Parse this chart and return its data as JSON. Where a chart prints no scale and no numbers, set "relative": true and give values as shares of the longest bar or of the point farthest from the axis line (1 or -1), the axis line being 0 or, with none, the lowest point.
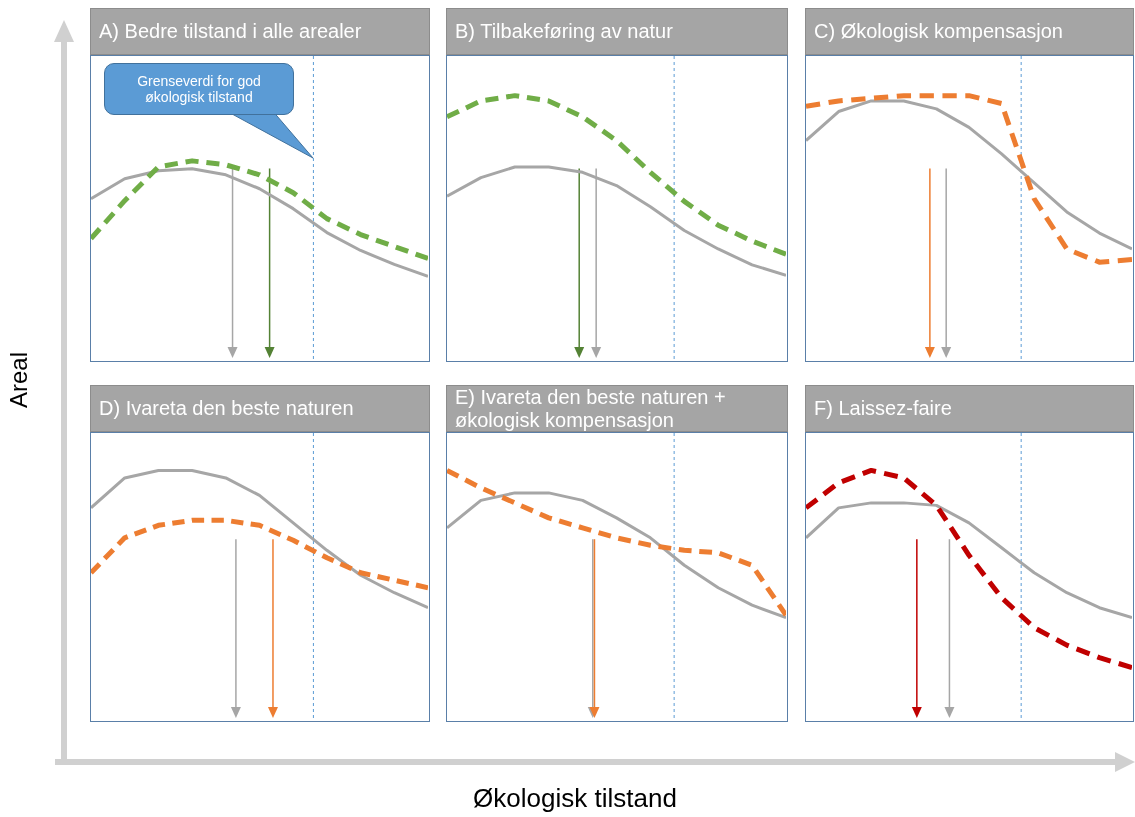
{
  "chart_data": [
    {
      "type": "line",
      "title": "A) Bedre tilstand i alle arealer",
      "ylabel": "Areal",
      "relative": true,
      "tick_labels": false,
      "categories": [
        null,
        null,
        null,
        null,
        null,
        null,
        null,
        null,
        null,
        null,
        null
      ],
      "annotations": [
        "Grenseverdi for god økologisk tilstand"
      ],
      "series": [
        {
          "color": "#a6a6a6",
          "line_style": "solid",
          "values": [
            0.81,
            0.91,
            0.95,
            0.96,
            0.93,
            0.86,
            0.76,
            0.64,
            0.55,
            0.48,
            0.42
          ]
        },
        {
          "color": "#70ad47",
          "line_style": "dashed",
          "values": [
            0.61,
            0.8,
            0.97,
            1,
            0.98,
            0.93,
            0.84,
            0.71,
            0.63,
            0.57,
            0.51
          ]
        }
      ]
    },
    {
      "type": "line",
      "title": "B) Tilbakeføring av natur",
      "relative": true,
      "tick_labels": false,
      "categories": [
        null,
        null,
        null,
        null,
        null,
        null,
        null,
        null,
        null,
        null,
        null
      ],
      "series": [
        {
          "color": "#a6a6a6",
          "line_style": "solid",
          "values": [
            0.62,
            0.69,
            0.73,
            0.73,
            0.71,
            0.66,
            0.58,
            0.49,
            0.42,
            0.36,
            0.32
          ]
        },
        {
          "color": "#70ad47",
          "line_style": "dashed",
          "values": [
            0.92,
            0.98,
            1,
            0.98,
            0.92,
            0.83,
            0.71,
            0.6,
            0.51,
            0.45,
            0.4
          ]
        }
      ]
    },
    {
      "type": "line",
      "title": "C) Økologisk kompensasjon",
      "relative": true,
      "tick_labels": false,
      "categories": [
        null,
        null,
        null,
        null,
        null,
        null,
        null,
        null,
        null,
        null,
        null
      ],
      "series": [
        {
          "color": "#a6a6a6",
          "line_style": "solid",
          "values": [
            0.83,
            0.94,
            0.98,
            0.98,
            0.95,
            0.88,
            0.78,
            0.67,
            0.56,
            0.48,
            0.42
          ]
        },
        {
          "color": "#ed7d31",
          "line_style": "dashed",
          "values": [
            0.96,
            0.98,
            0.99,
            1,
            1,
            1,
            0.97,
            0.61,
            0.42,
            0.37,
            0.38
          ]
        }
      ]
    },
    {
      "type": "line",
      "title": "D) Ivareta den beste naturen",
      "relative": true,
      "tick_labels": false,
      "categories": [
        null,
        null,
        null,
        null,
        null,
        null,
        null,
        null,
        null,
        null,
        null
      ],
      "series": [
        {
          "color": "#a6a6a6",
          "line_style": "solid",
          "values": [
            0.85,
            0.97,
            1,
            1,
            0.97,
            0.9,
            0.79,
            0.68,
            0.58,
            0.51,
            0.45
          ]
        },
        {
          "color": "#ed7d31",
          "line_style": "dashed",
          "values": [
            0.59,
            0.73,
            0.78,
            0.8,
            0.8,
            0.78,
            0.72,
            0.65,
            0.59,
            0.56,
            0.53
          ]
        }
      ]
    },
    {
      "type": "line",
      "title": "E) Ivareta den beste naturen + økologisk kompensasjon",
      "xlabel": "Økologisk tilstand",
      "relative": true,
      "tick_labels": false,
      "categories": [
        null,
        null,
        null,
        null,
        null,
        null,
        null,
        null,
        null,
        null,
        null
      ],
      "series": [
        {
          "color": "#a6a6a6",
          "line_style": "solid",
          "values": [
            0.77,
            0.88,
            0.91,
            0.91,
            0.88,
            0.81,
            0.73,
            0.62,
            0.53,
            0.46,
            0.41
          ]
        },
        {
          "color": "#ed7d31",
          "line_style": "dashed",
          "values": [
            1,
            0.93,
            0.87,
            0.81,
            0.77,
            0.73,
            0.7,
            0.68,
            0.67,
            0.62,
            0.42
          ]
        }
      ]
    },
    {
      "type": "line",
      "title": "F) Laissez-faire",
      "relative": true,
      "tick_labels": false,
      "categories": [
        null,
        null,
        null,
        null,
        null,
        null,
        null,
        null,
        null,
        null,
        null
      ],
      "series": [
        {
          "color": "#a6a6a6",
          "line_style": "solid",
          "values": [
            0.73,
            0.85,
            0.87,
            0.87,
            0.86,
            0.79,
            0.69,
            0.59,
            0.51,
            0.45,
            0.41
          ]
        },
        {
          "color": "#c00000",
          "line_style": "dashed",
          "values": [
            0.85,
            0.95,
            1,
            0.97,
            0.86,
            0.66,
            0.49,
            0.37,
            0.3,
            0.25,
            0.21
          ]
        }
      ]
    }
  ]
}
